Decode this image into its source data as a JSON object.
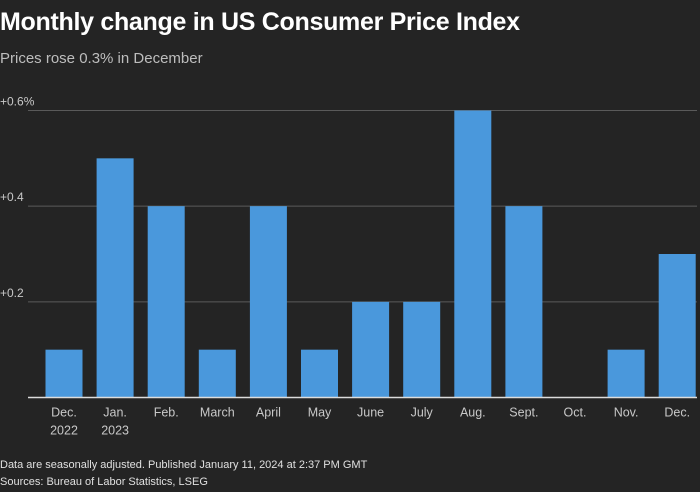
{
  "title": "Monthly change in US Consumer Price Index",
  "subtitle": "Prices rose 0.3% in December",
  "footnote": "Data are seasonally adjusted. Published January 11, 2024 at 2:37 PM GMT",
  "source": "Sources: Bureau of Labor Statistics, LSEG",
  "chart_data": {
    "type": "bar",
    "title": "Monthly change in US Consumer Price Index",
    "subtitle": "Prices rose 0.3% in December",
    "xlabel": "",
    "ylabel": "",
    "ylim": [
      0,
      0.6
    ],
    "yticks": [
      {
        "value": 0.2,
        "label": "+0.2"
      },
      {
        "value": 0.4,
        "label": "+0.4"
      },
      {
        "value": 0.6,
        "label": "+0.6%"
      }
    ],
    "grid": true,
    "categories": [
      [
        "Dec.",
        "2022"
      ],
      [
        "Jan.",
        "2023"
      ],
      [
        "Feb."
      ],
      [
        "March"
      ],
      [
        "April"
      ],
      [
        "May"
      ],
      [
        "June"
      ],
      [
        "July"
      ],
      [
        "Aug."
      ],
      [
        "Sept."
      ],
      [
        "Oct."
      ],
      [
        "Nov."
      ],
      [
        "Dec."
      ]
    ],
    "values": [
      0.1,
      0.5,
      0.4,
      0.1,
      0.4,
      0.1,
      0.2,
      0.2,
      0.6,
      0.4,
      0.0,
      0.1,
      0.3
    ],
    "bar_color": "#4a98dc",
    "grid_color": "#5a5a5a",
    "axis_color": "#dcdcdc"
  }
}
